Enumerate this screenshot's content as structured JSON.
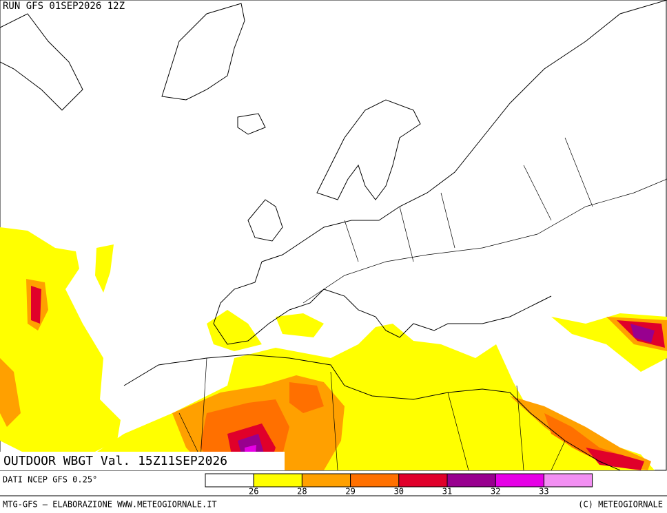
{
  "header": {
    "run": "RUN GFS 01SEP2026 12Z"
  },
  "map": {
    "title": "OUTDOOR WBGT Val. 15Z11SEP2026"
  },
  "legend": {
    "source": "DATI NCEP GFS 0.25°",
    "colors": [
      "#ffffff",
      "#ffff00",
      "#ffa000",
      "#ff7000",
      "#e0002a",
      "#98008f",
      "#e600e6",
      "#f28ff2"
    ],
    "thresholds": [
      26,
      28,
      29,
      30,
      31,
      32,
      33
    ]
  },
  "footer": {
    "left": "MTG-GFS — ELABORAZIONE WWW.METEOGIORNALE.IT",
    "right": "(C) METEOGIORNALE"
  }
}
